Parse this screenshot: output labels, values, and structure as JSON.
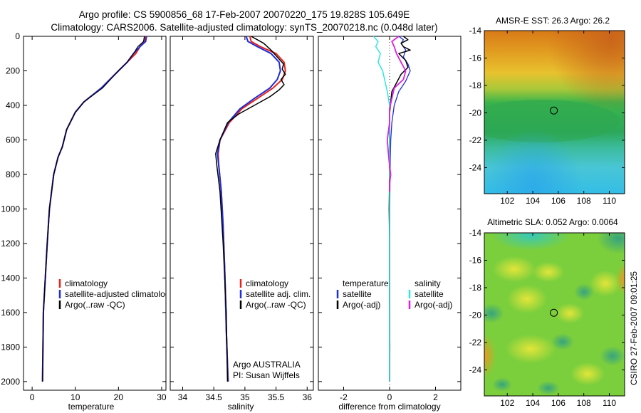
{
  "header": {
    "line1": "Argo profile: CS 5900856_68 17-Feb-2007 20070220_175 19.828S 105.649E",
    "line2": "Climatology: CARS2006. Satellite-adjusted climatology: synTS_20070218.nc (0.048d later)"
  },
  "side_label": "CSIRO 27-Feb-2007 09:01:25",
  "colors": {
    "climatology": "#e8231a",
    "satellite": "#1e2ed8",
    "argo": "#000000",
    "sal_satellite": "#2ee6e0",
    "sal_argo": "#e21de0"
  },
  "chart_data": [
    {
      "type": "line",
      "id": "temperature",
      "xlabel": "temperature",
      "xlim": [
        -2,
        31
      ],
      "ylim": [
        0,
        2050
      ],
      "xticks": [
        0,
        10,
        20,
        30
      ],
      "yticks": [
        0,
        200,
        400,
        600,
        800,
        1000,
        1200,
        1400,
        1600,
        1800,
        2000
      ],
      "legend": [
        "climatology",
        "satellite-adjusted climatology",
        "Argo(..raw -QC)"
      ],
      "series": [
        {
          "name": "climatology",
          "color": "#e8231a",
          "width": 2,
          "x": [
            26.2,
            26,
            25,
            24,
            22,
            20,
            16,
            12,
            10,
            8,
            7,
            6,
            5,
            4.5,
            4,
            3.5,
            2.6,
            2.4
          ],
          "y": [
            0,
            30,
            60,
            100,
            150,
            200,
            300,
            380,
            440,
            540,
            640,
            700,
            800,
            900,
            1000,
            1200,
            1600,
            2000
          ]
        },
        {
          "name": "satellite-adjusted climatology",
          "color": "#1e2ed8",
          "width": 2,
          "x": [
            26.5,
            26.3,
            25,
            23.5,
            22,
            20,
            16,
            12,
            10,
            8,
            7,
            6,
            5,
            4.5,
            4,
            3.5,
            2.6,
            2.4
          ],
          "y": [
            0,
            30,
            60,
            100,
            150,
            200,
            300,
            380,
            440,
            540,
            640,
            700,
            800,
            900,
            1000,
            1200,
            1600,
            2000
          ]
        },
        {
          "name": "Argo(..raw -QC)",
          "color": "#000000",
          "width": 1.2,
          "x": [
            26,
            25.8,
            24.5,
            23.5,
            22,
            20,
            16.3,
            12,
            10,
            8,
            7,
            6,
            5,
            4.5,
            4,
            3.5,
            2.6,
            2.4
          ],
          "y": [
            0,
            30,
            60,
            100,
            150,
            200,
            300,
            380,
            440,
            540,
            640,
            700,
            800,
            900,
            1000,
            1200,
            1600,
            2000
          ]
        }
      ]
    },
    {
      "type": "line",
      "id": "salinity",
      "xlabel": "salinity",
      "xlim": [
        33.8,
        36.1
      ],
      "ylim": [
        0,
        2050
      ],
      "xticks": [
        34,
        34.5,
        35,
        35.5,
        36
      ],
      "legend": [
        "climatology",
        "satellite adj. clim.",
        "Argo(..raw -QC)"
      ],
      "annotation": [
        "Argo AUSTRALIA",
        "PI: Susan Wijffels"
      ],
      "series": [
        {
          "name": "climatology",
          "color": "#e8231a",
          "width": 2,
          "x": [
            35.08,
            35.1,
            35.25,
            35.5,
            35.63,
            35.65,
            35.6,
            35.45,
            35.2,
            34.95,
            34.75,
            34.6,
            34.57,
            34.58,
            34.62,
            34.65,
            34.68,
            34.7,
            34.72,
            34.73
          ],
          "y": [
            0,
            30,
            60,
            100,
            150,
            200,
            250,
            300,
            360,
            420,
            500,
            600,
            680,
            750,
            900,
            1100,
            1400,
            1700,
            1900,
            2000
          ]
        },
        {
          "name": "satellite adj. clim.",
          "color": "#1e2ed8",
          "width": 2,
          "x": [
            35.02,
            35.05,
            35.2,
            35.42,
            35.55,
            35.57,
            35.52,
            35.4,
            35.15,
            34.92,
            34.73,
            34.6,
            34.56,
            34.58,
            34.62,
            34.65,
            34.68,
            34.7,
            34.72,
            34.73
          ],
          "y": [
            0,
            30,
            60,
            100,
            150,
            200,
            250,
            300,
            360,
            420,
            500,
            600,
            680,
            750,
            900,
            1100,
            1400,
            1700,
            1900,
            2000
          ]
        },
        {
          "name": "Argo(..raw -QC)",
          "color": "#000000",
          "width": 1.5,
          "x": [
            35.1,
            35.2,
            35.3,
            35.42,
            35.52,
            35.62,
            35.6,
            35.65,
            35.58,
            35.63,
            35.55,
            35.4,
            35.15,
            34.9,
            34.72,
            34.6,
            34.53,
            34.55,
            34.6,
            34.65,
            34.7,
            34.72
          ],
          "y": [
            0,
            20,
            40,
            80,
            120,
            160,
            190,
            220,
            250,
            280,
            310,
            350,
            400,
            450,
            500,
            600,
            680,
            750,
            900,
            1200,
            1600,
            2000
          ]
        }
      ]
    },
    {
      "type": "line",
      "id": "difference",
      "xlabel": "difference from climatology",
      "xlim": [
        -3.1,
        3.1
      ],
      "ylim": [
        0,
        2050
      ],
      "xticks": [
        -2,
        0,
        2
      ],
      "legend_left_title": "temperature",
      "legend_right_title": "salinity",
      "legend_left": [
        "satellite",
        "Argo(-adj)"
      ],
      "legend_right": [
        "satellite",
        "Argo(-adj)"
      ],
      "series": [
        {
          "name": "temperature satellite",
          "color": "#1e2ed8",
          "width": 1.3,
          "x": [
            0.4,
            0.6,
            0.5,
            0.7,
            0.6,
            0.8,
            0.9,
            0.7,
            0.4,
            0.2,
            0.1,
            0.05,
            0.02,
            0,
            0
          ],
          "y": [
            0,
            20,
            40,
            80,
            120,
            160,
            200,
            260,
            320,
            400,
            500,
            600,
            800,
            1200,
            2000
          ]
        },
        {
          "name": "temperature Argo(-adj)",
          "color": "#000000",
          "width": 1.5,
          "x": [
            0.6,
            0.8,
            0.5,
            0.6,
            0.9,
            0.4,
            0.7,
            0.8,
            0.5,
            0.3,
            0.1,
            0.05,
            0,
            0,
            0,
            -0.02,
            0,
            0,
            0.01,
            0
          ],
          "y": [
            0,
            20,
            40,
            60,
            80,
            100,
            140,
            180,
            220,
            270,
            320,
            380,
            450,
            600,
            800,
            1000,
            1200,
            1500,
            1800,
            2000
          ]
        },
        {
          "name": "salinity satellite",
          "color": "#2ee6e0",
          "width": 1.5,
          "x": [
            -0.7,
            -0.5,
            -0.6,
            -0.4,
            -0.5,
            -0.3,
            -0.2,
            -0.1,
            0,
            0,
            0.01,
            0,
            0,
            0
          ],
          "y": [
            0,
            30,
            60,
            100,
            150,
            200,
            260,
            320,
            400,
            500,
            700,
            1000,
            1500,
            2000
          ]
        },
        {
          "name": "salinity Argo(-adj)",
          "color": "#e21de0",
          "width": 1.8,
          "x": [
            0.4,
            0.1,
            0.2,
            0.3,
            0.5,
            0.7,
            0.6,
            0.2,
            0.1,
            0,
            0,
            -0.1,
            -0.05,
            0,
            0.05,
            0,
            0
          ],
          "y": [
            0,
            30,
            60,
            100,
            150,
            200,
            250,
            300,
            360,
            420,
            500,
            600,
            680,
            750,
            800,
            850,
            900
          ]
        }
      ]
    },
    {
      "type": "heatmap",
      "id": "sst",
      "title": "AMSR-E SST: 26.3 Argo: 26.2",
      "xlim": [
        100.2,
        111.2
      ],
      "ylim": [
        -25.9,
        -14.0
      ],
      "xticks": [
        102,
        104,
        106,
        108,
        110
      ],
      "yticks": [
        -14,
        -16,
        -18,
        -20,
        -22,
        -24
      ],
      "marker": {
        "lon": 105.649,
        "lat": -19.828
      }
    },
    {
      "type": "heatmap",
      "id": "sla",
      "title": "Altimetric SLA: 0.052 Argo: 0.0064",
      "xlim": [
        100.2,
        111.2
      ],
      "ylim": [
        -25.9,
        -14.0
      ],
      "xticks": [
        102,
        104,
        106,
        108,
        110
      ],
      "yticks": [
        -14,
        -16,
        -18,
        -20,
        -22,
        -24
      ],
      "marker": {
        "lon": 105.649,
        "lat": -19.828
      }
    }
  ]
}
